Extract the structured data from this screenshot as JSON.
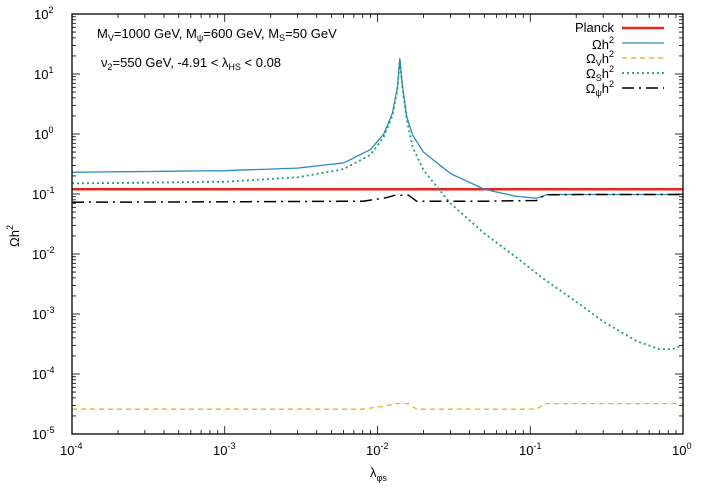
{
  "chart_data": {
    "type": "line",
    "title": "",
    "xlabel": "λ_φs",
    "ylabel": "Ωh²",
    "xscale": "log",
    "yscale": "log",
    "xlim": [
      0.0001,
      1
    ],
    "ylim": [
      1e-05,
      100
    ],
    "grid": false,
    "legend_position": "top-right",
    "x_ticks": [
      "10^-4",
      "10^-3",
      "10^-2",
      "10^-1",
      "10^0"
    ],
    "y_ticks": [
      "10^-5",
      "10^-4",
      "10^-3",
      "10^-2",
      "10^-1",
      "10^0",
      "10^1",
      "10^2"
    ],
    "annotations": [
      "M_V=1000 GeV, M_ψ=600 GeV, M_S=50 GeV",
      "v_2=550 GeV, -4.91 < λ_HS < 0.08"
    ],
    "series": [
      {
        "name": "Planck",
        "color": "#e3261c",
        "style": "solid-thick",
        "x": [
          0.0001,
          1
        ],
        "y": [
          0.12,
          0.12
        ]
      },
      {
        "name": "Ωh²",
        "color": "#2a8bc4",
        "style": "solid",
        "x": [
          0.0001,
          0.001,
          0.003,
          0.006,
          0.009,
          0.011,
          0.0125,
          0.0135,
          0.014,
          0.0145,
          0.0155,
          0.017,
          0.02,
          0.03,
          0.05,
          0.08,
          0.11,
          0.13,
          0.2,
          0.5,
          1
        ],
        "y": [
          0.23,
          0.245,
          0.27,
          0.33,
          0.55,
          1.0,
          2.2,
          6.0,
          18.0,
          7.0,
          2.0,
          0.95,
          0.5,
          0.22,
          0.12,
          0.092,
          0.085,
          0.098,
          0.098,
          0.098,
          0.098
        ]
      },
      {
        "name": "Ω_V h²",
        "color": "#e8a423",
        "style": "dashed",
        "x": [
          0.0001,
          0.001,
          0.008,
          0.011,
          0.013,
          0.016,
          0.018,
          0.05,
          0.11,
          0.125,
          0.2,
          0.5,
          1
        ],
        "y": [
          2.6e-05,
          2.6e-05,
          2.6e-05,
          2.9e-05,
          3.2e-05,
          3.2e-05,
          2.6e-05,
          2.6e-05,
          2.6e-05,
          3.2e-05,
          3.2e-05,
          3.2e-05,
          3.2e-05
        ]
      },
      {
        "name": "Ω_S h²",
        "color": "#1b9e77",
        "style": "dotted",
        "x": [
          0.0001,
          0.001,
          0.003,
          0.006,
          0.009,
          0.011,
          0.0125,
          0.0135,
          0.014,
          0.0145,
          0.0155,
          0.017,
          0.02,
          0.03,
          0.05,
          0.08,
          0.12,
          0.2,
          0.3,
          0.5,
          0.7,
          0.85,
          1
        ],
        "y": [
          0.15,
          0.16,
          0.19,
          0.26,
          0.45,
          0.9,
          2.0,
          5.5,
          17.0,
          6.5,
          1.8,
          0.6,
          0.25,
          0.07,
          0.022,
          0.009,
          0.004,
          0.0016,
          0.00075,
          0.00035,
          0.00026,
          0.00026,
          0.0003
        ]
      },
      {
        "name": "Ω_ψ h²",
        "color": "#000000",
        "style": "dash-dot",
        "x": [
          0.0001,
          0.001,
          0.008,
          0.011,
          0.013,
          0.016,
          0.018,
          0.05,
          0.11,
          0.125,
          0.2,
          0.5,
          1
        ],
        "y": [
          0.073,
          0.074,
          0.076,
          0.085,
          0.095,
          0.095,
          0.076,
          0.076,
          0.078,
          0.097,
          0.098,
          0.098,
          0.098
        ]
      }
    ]
  },
  "axes": {
    "x_label_main": "λ",
    "x_label_sub": "φs",
    "y_label_main": "Ωh",
    "y_label_sup": "2",
    "x_tick_labels": [
      {
        "base": "10",
        "exp": "-4"
      },
      {
        "base": "10",
        "exp": "-3"
      },
      {
        "base": "10",
        "exp": "-2"
      },
      {
        "base": "10",
        "exp": "-1"
      },
      {
        "base": "10",
        "exp": "0"
      }
    ],
    "y_tick_labels": [
      {
        "base": "10",
        "exp": "2"
      },
      {
        "base": "10",
        "exp": "1"
      },
      {
        "base": "10",
        "exp": "0"
      },
      {
        "base": "10",
        "exp": "-1"
      },
      {
        "base": "10",
        "exp": "-2"
      },
      {
        "base": "10",
        "exp": "-3"
      },
      {
        "base": "10",
        "exp": "-4"
      },
      {
        "base": "10",
        "exp": "-5"
      }
    ]
  },
  "annotation_line1": {
    "p1": "M",
    "s1": "V",
    "t1": "=1000 GeV, M",
    "s2": "ψ",
    "t2": "=600 GeV, M",
    "s3": "S",
    "t3": "=50 GeV"
  },
  "annotation_line2": {
    "p1": "ν",
    "s1": "2",
    "t1": "=550 GeV, -4.91 < λ",
    "s2": "HS",
    "t2": " < 0.08"
  },
  "legend": [
    {
      "main": "Planck",
      "sub": "",
      "tail": "",
      "sup": ""
    },
    {
      "main": "Ωh",
      "sub": "",
      "tail": "",
      "sup": "2"
    },
    {
      "main": "Ω",
      "sub": "V",
      "tail": "h",
      "sup": "2"
    },
    {
      "main": "Ω",
      "sub": "S",
      "tail": "h",
      "sup": "2"
    },
    {
      "main": "Ω",
      "sub": "ψ",
      "tail": "h",
      "sup": "2"
    }
  ]
}
